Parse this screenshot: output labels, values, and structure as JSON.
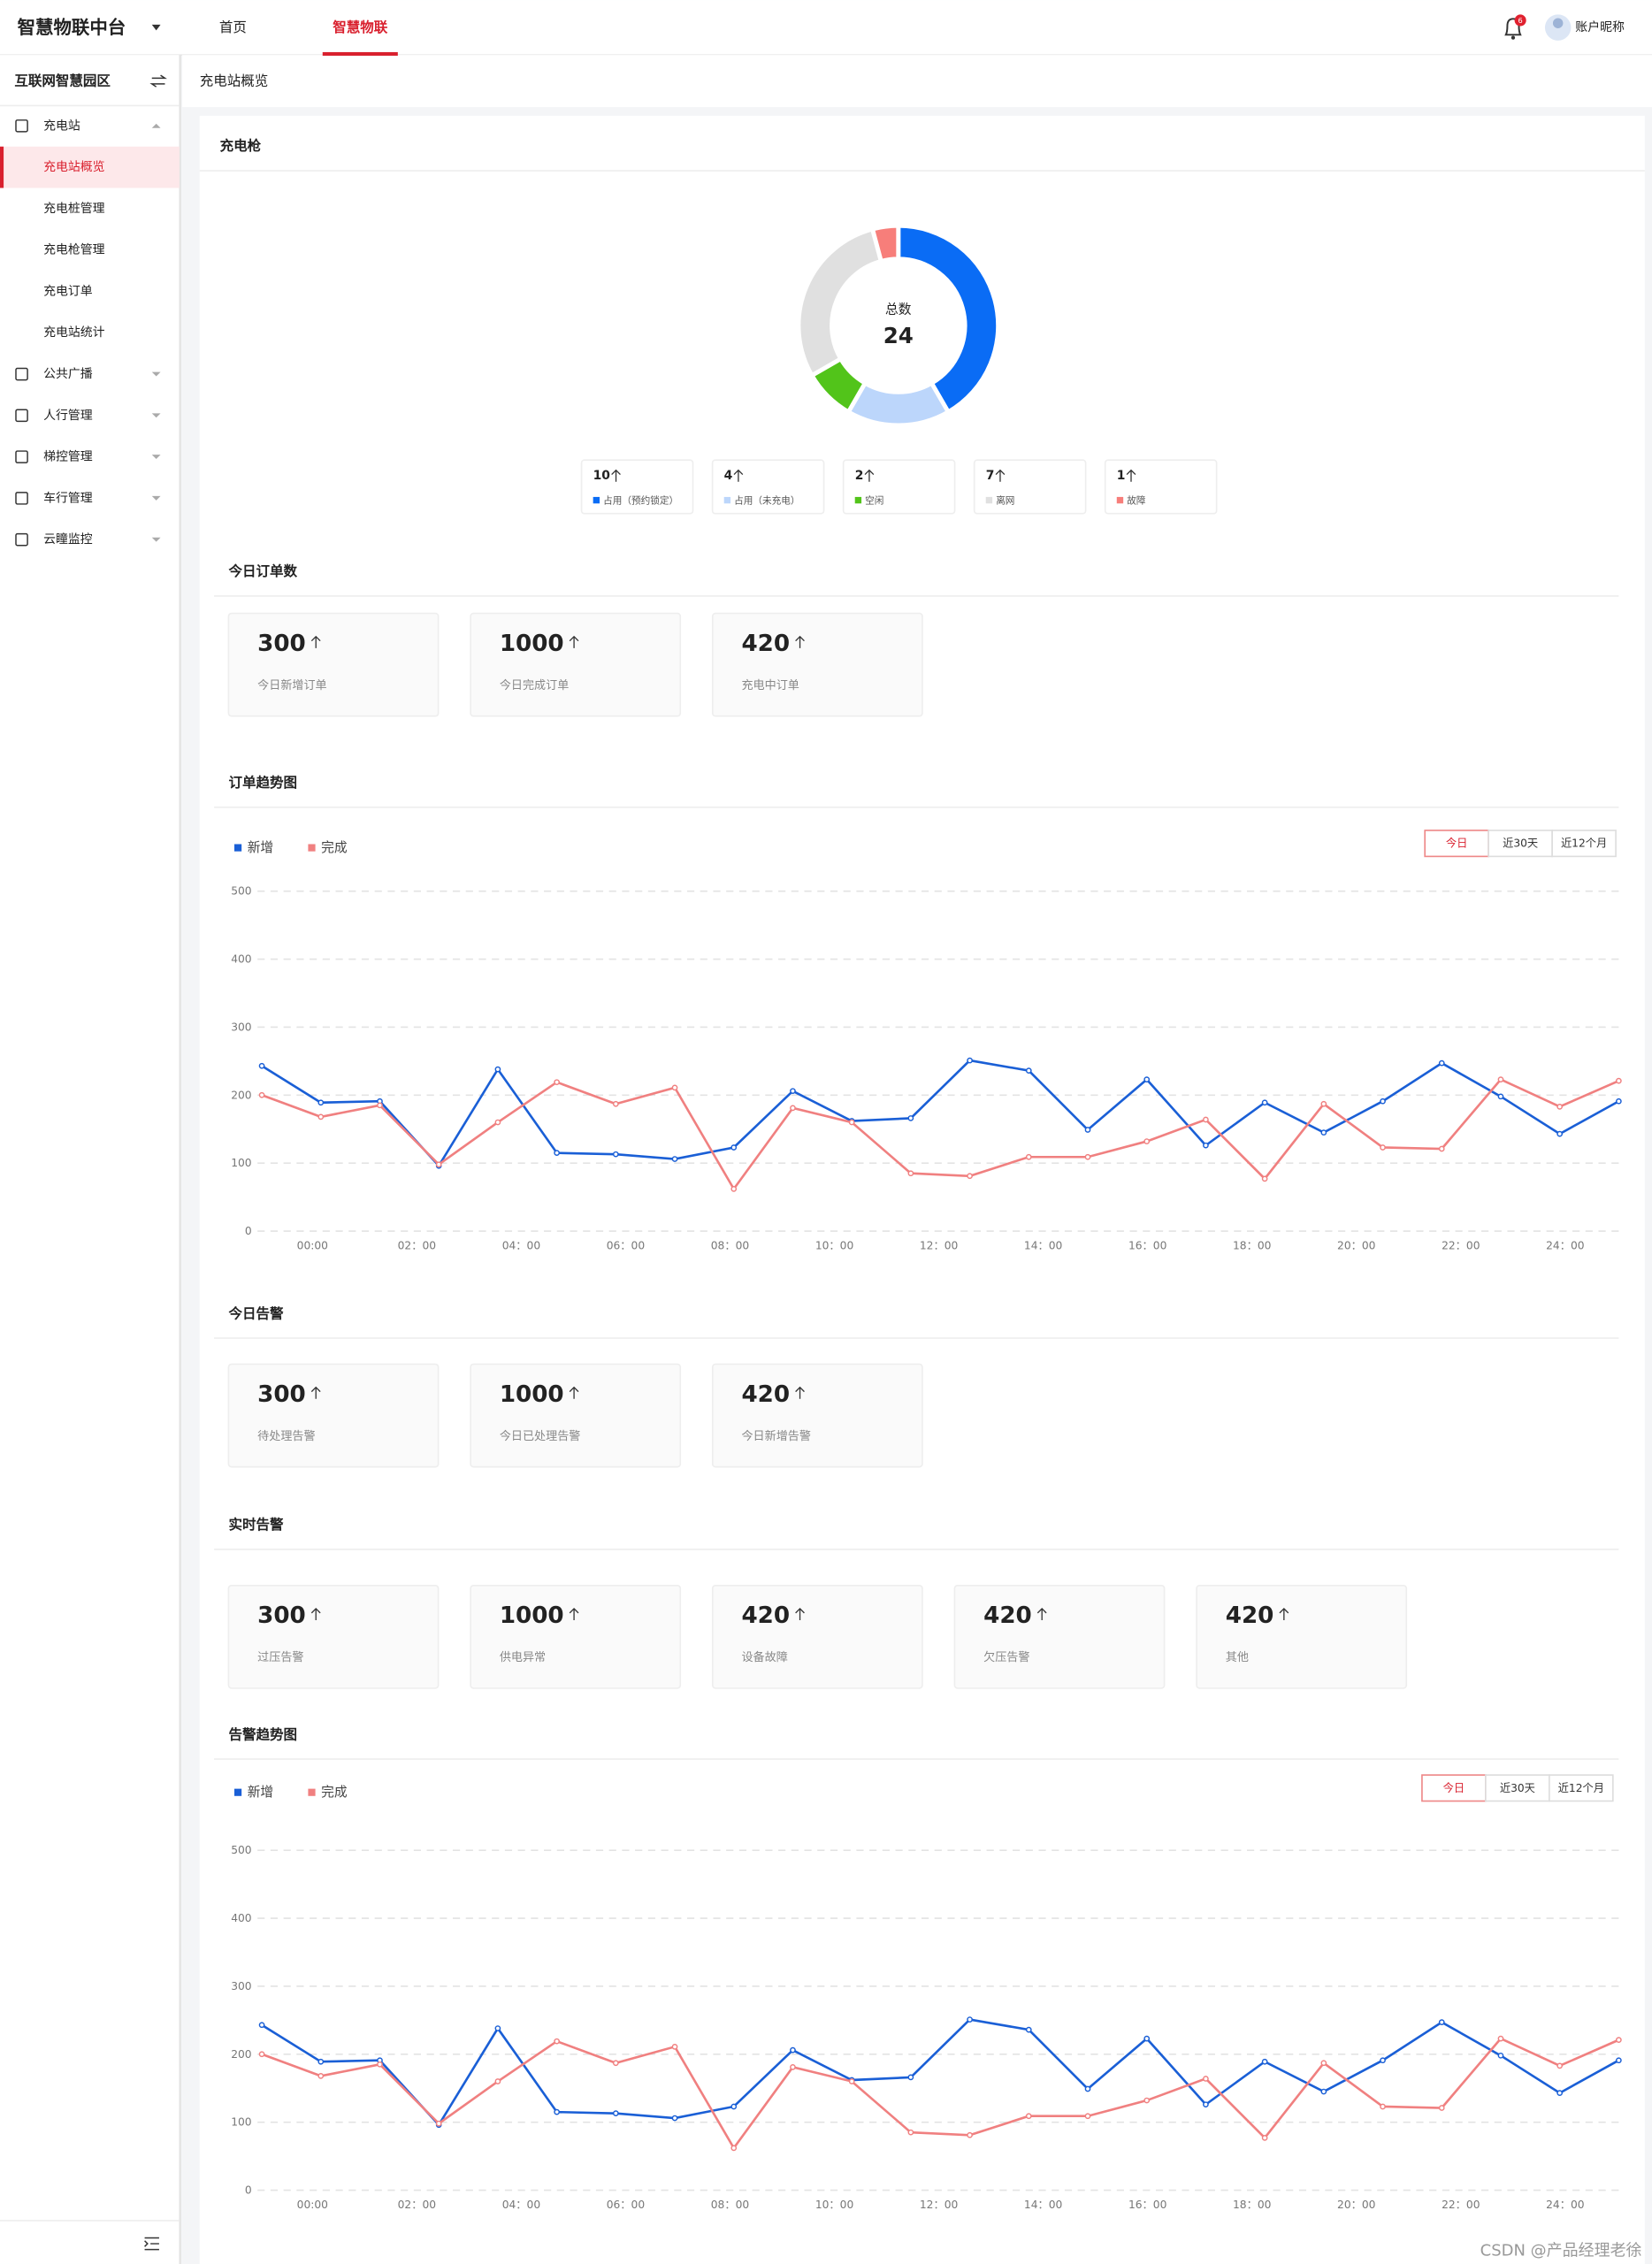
{
  "header": {
    "brand": "智慧物联中台",
    "nav": [
      "首页",
      "智慧物联"
    ],
    "notifications": 6,
    "user": "账户昵称"
  },
  "sidebar": {
    "title": "互联网智慧园区",
    "menu": [
      {
        "label": "充电站",
        "children": [
          "充电站概览",
          "充电桩管理",
          "充电枪管理",
          "充电订单",
          "充电站统计"
        ]
      },
      {
        "label": "公共广播"
      },
      {
        "label": "人行管理"
      },
      {
        "label": "梯控管理"
      },
      {
        "label": "车行管理"
      },
      {
        "label": "云瞳监控"
      }
    ]
  },
  "breadcrumb": "充电站概览",
  "order_stats": {
    "title": "今日订单数",
    "items": [
      {
        "value": 300,
        "label": "今日新增订单"
      },
      {
        "value": 1000,
        "label": "今日完成订单"
      },
      {
        "value": 420,
        "label": "充电中订单"
      }
    ]
  },
  "alarm_stats": {
    "title": "今日告警",
    "items": [
      {
        "value": 300,
        "label": "待处理告警"
      },
      {
        "value": 1000,
        "label": "今日已处理告警"
      },
      {
        "value": 420,
        "label": "今日新增告警"
      }
    ]
  },
  "realtime_alarms": {
    "title": "实时告警",
    "items": [
      {
        "value": 300,
        "label": "过压告警"
      },
      {
        "value": 1000,
        "label": "供电异常"
      },
      {
        "value": 420,
        "label": "设备故障"
      },
      {
        "value": 420,
        "label": "欠压告警"
      },
      {
        "value": 420,
        "label": "其他"
      }
    ]
  },
  "range_buttons": [
    "今日",
    "近30天",
    "近12个月"
  ],
  "chart_data": [
    {
      "type": "pie",
      "title": "充电枪",
      "donut": true,
      "center_label": "总数",
      "total": 24,
      "categories": [
        "占用（预约锁定）",
        "占用（未充电）",
        "空闲",
        "离网",
        "故障"
      ],
      "values": [
        10,
        4,
        2,
        7,
        1
      ],
      "colors": [
        "#0a6cf5",
        "#bcd6fb",
        "#52c41a",
        "#e0e0e0",
        "#f77e7a"
      ]
    },
    {
      "type": "line",
      "title": "订单趋势图",
      "ylim": [
        0,
        500
      ],
      "yticks": [
        0,
        100,
        200,
        300,
        400,
        500
      ],
      "grid": true,
      "x_labels": [
        "00:00",
        "02：00",
        "04：00",
        "06：00",
        "08：00",
        "10：00",
        "12：00",
        "14：00",
        "16：00",
        "18：00",
        "20：00",
        "22：00",
        "24：00"
      ],
      "series": [
        {
          "name": "新增",
          "color": "#1a5fd6",
          "values": [
            243,
            189,
            191,
            96,
            238,
            115,
            113,
            106,
            123,
            206,
            162,
            166,
            251,
            236,
            149,
            223,
            126,
            189,
            145,
            191,
            247,
            198,
            143,
            191
          ]
        },
        {
          "name": "完成",
          "color": "#f08080",
          "values": [
            200,
            168,
            185,
            98,
            160,
            219,
            187,
            211,
            62,
            181,
            160,
            85,
            81,
            109,
            109,
            132,
            164,
            77,
            187,
            123,
            121,
            223,
            183,
            221
          ]
        }
      ]
    },
    {
      "type": "line",
      "title": "告警趋势图",
      "ylim": [
        0,
        500
      ],
      "yticks": [
        0,
        100,
        200,
        300,
        400,
        500
      ],
      "grid": true,
      "x_labels": [
        "00:00",
        "02：00",
        "04：00",
        "06：00",
        "08：00",
        "10：00",
        "12：00",
        "14：00",
        "16：00",
        "18：00",
        "20：00",
        "22：00",
        "24：00"
      ],
      "series": [
        {
          "name": "新增",
          "color": "#1a5fd6",
          "values": [
            243,
            189,
            191,
            96,
            238,
            115,
            113,
            106,
            123,
            206,
            162,
            166,
            251,
            236,
            149,
            223,
            126,
            189,
            145,
            191,
            247,
            198,
            143,
            191
          ]
        },
        {
          "name": "完成",
          "color": "#f08080",
          "values": [
            200,
            168,
            185,
            98,
            160,
            219,
            187,
            211,
            62,
            181,
            160,
            85,
            81,
            109,
            109,
            132,
            164,
            77,
            187,
            123,
            121,
            223,
            183,
            221
          ]
        }
      ]
    }
  ],
  "watermark": "CSDN @产品经理老徐"
}
